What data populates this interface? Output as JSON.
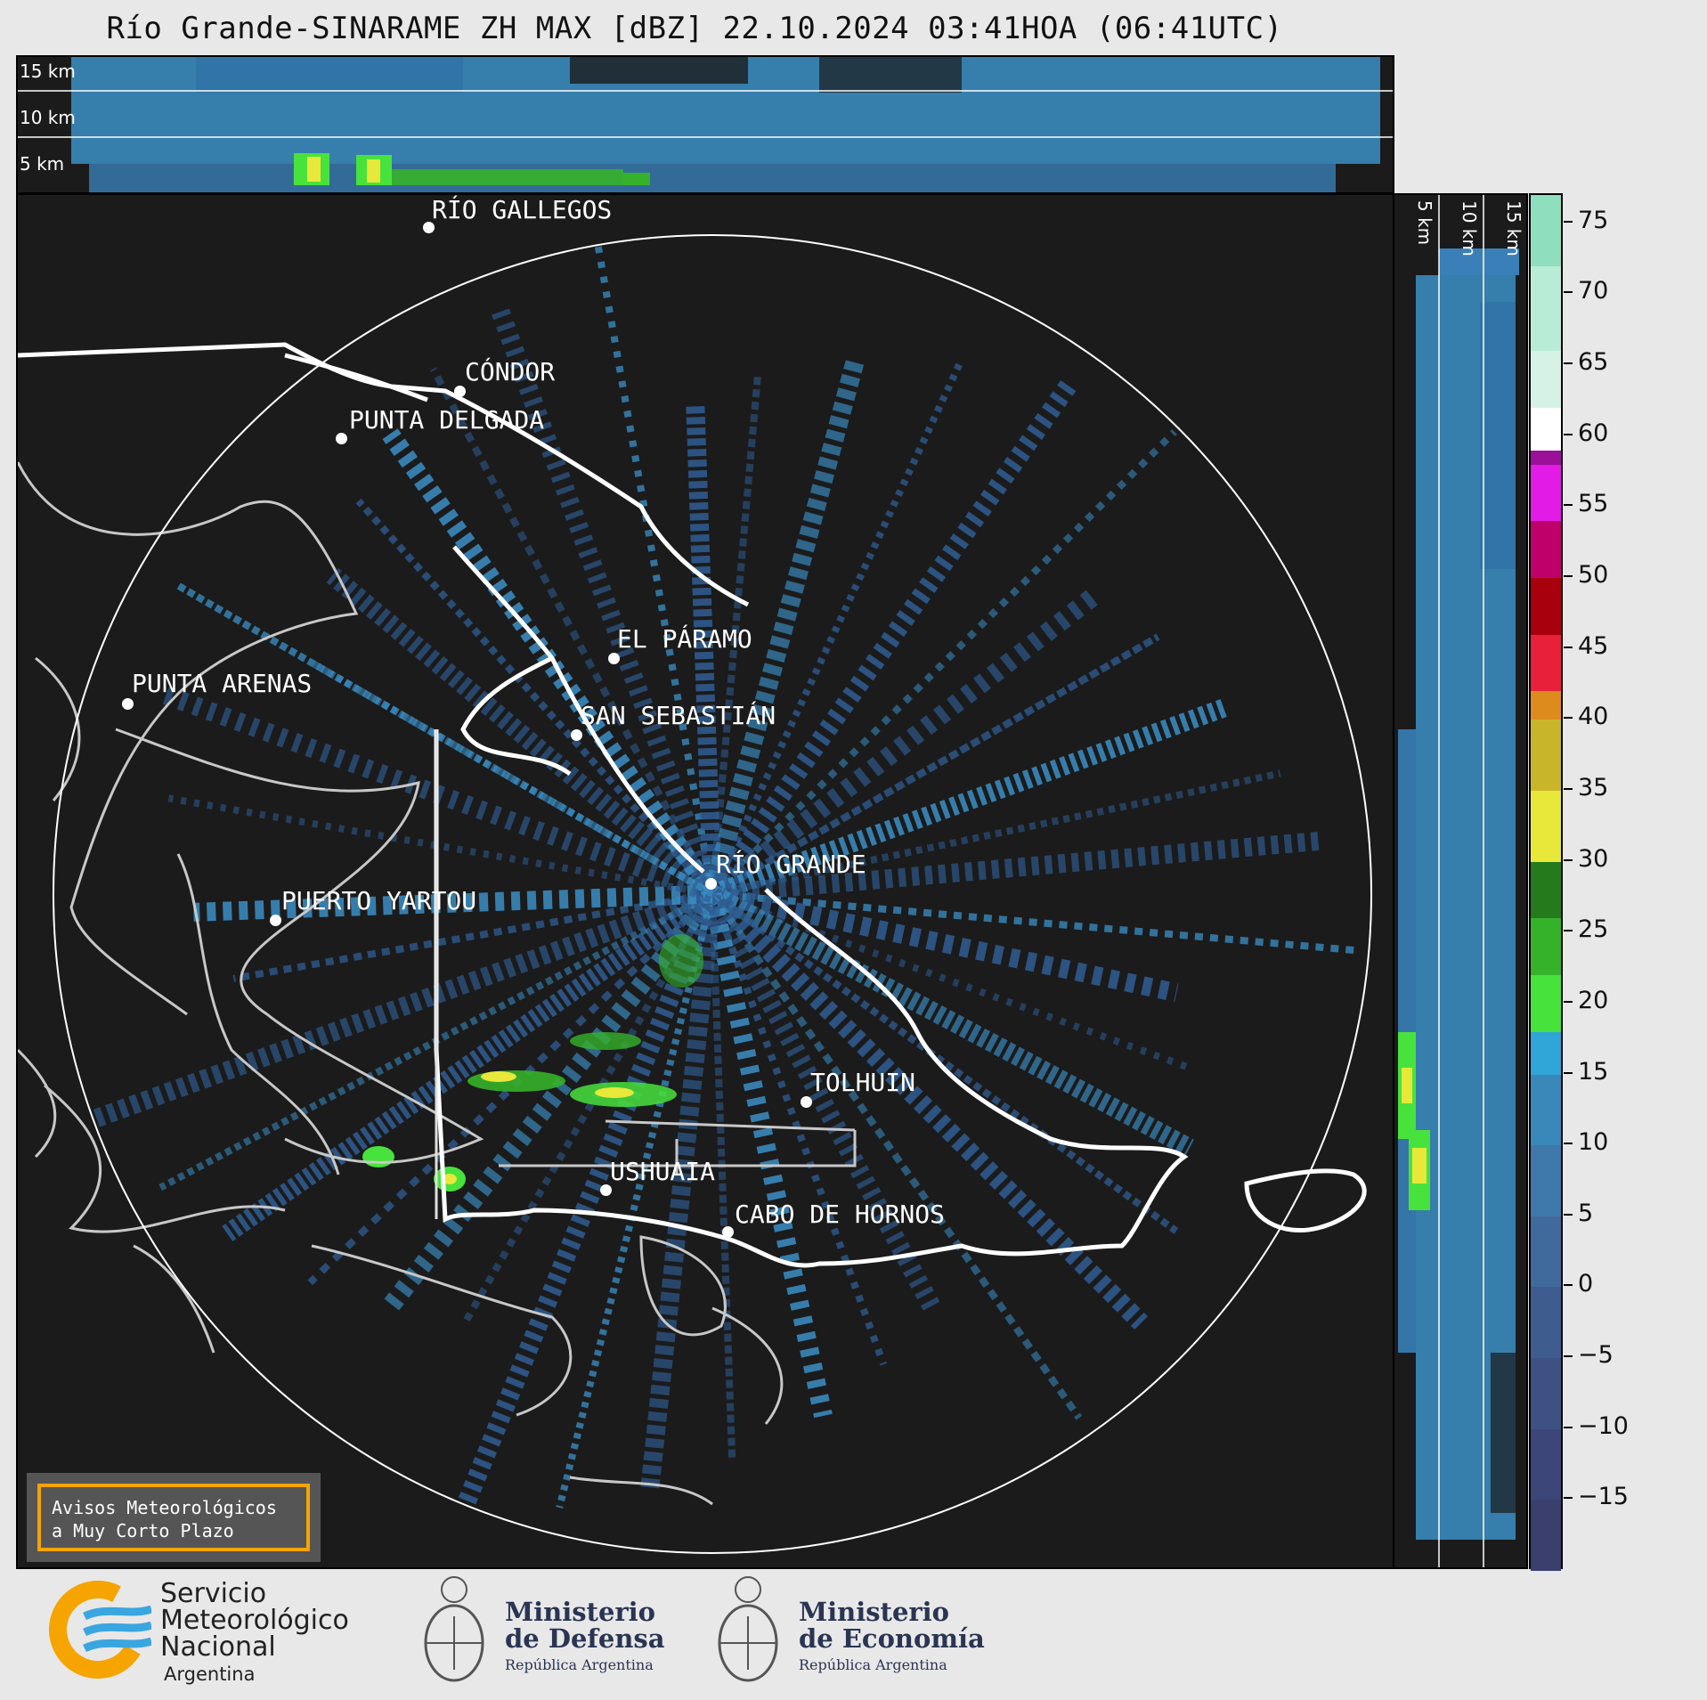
{
  "header": {
    "title": "Río Grande-SINARAME ZH MAX [dBZ] 22.10.2024 03:41HOA (06:41UTC)"
  },
  "top_section": {
    "altitude_labels": [
      "15 km",
      "10 km",
      "5 km"
    ]
  },
  "right_section": {
    "altitude_labels": [
      "5 km",
      "10 km",
      "15 km"
    ]
  },
  "map": {
    "cities": [
      {
        "name": "RÍO GALLEGOS"
      },
      {
        "name": "CÓNDOR"
      },
      {
        "name": "PUNTA DELGADA"
      },
      {
        "name": "EL PÁRAMO"
      },
      {
        "name": "PUNTA ARENAS"
      },
      {
        "name": "SAN SEBASTIÁN"
      },
      {
        "name": "RÍO GRANDE"
      },
      {
        "name": "PUERTO YARTOU"
      },
      {
        "name": "TOLHUIN"
      },
      {
        "name": "USHUAIA"
      },
      {
        "name": "CABO DE HORNOS"
      }
    ],
    "colors": {
      "background": "#1b1b1b",
      "echo_light": "#3b8fc6",
      "echo_dark": "#2f5d93",
      "coast": "#ffffff",
      "coast_secondary": "#c8c8c8"
    }
  },
  "warning": {
    "line1": "Avisos Meteorológicos",
    "line2": "a Muy Corto Plazo",
    "border_color": "#f5a400"
  },
  "colorbar": {
    "unit": "dBZ",
    "min": -20,
    "max": 77,
    "ticks": [
      75,
      70,
      65,
      60,
      55,
      50,
      45,
      40,
      35,
      30,
      25,
      20,
      15,
      10,
      5,
      0,
      -5,
      -10,
      -15
    ],
    "tick_labels": [
      "75",
      "70",
      "65",
      "60",
      "55",
      "50",
      "45",
      "40",
      "35",
      "30",
      "25",
      "20",
      "15",
      "10",
      "5",
      "0",
      "−5",
      "−10",
      "−15"
    ],
    "bands": [
      {
        "from": -20,
        "to": -15,
        "color": "#3a3f6d"
      },
      {
        "from": -15,
        "to": -10,
        "color": "#3c4678"
      },
      {
        "from": -10,
        "to": -5,
        "color": "#3e5183"
      },
      {
        "from": -5,
        "to": 0,
        "color": "#3f5c8f"
      },
      {
        "from": 0,
        "to": 5,
        "color": "#40699c"
      },
      {
        "from": 5,
        "to": 10,
        "color": "#3f78ab"
      },
      {
        "from": 10,
        "to": 15,
        "color": "#3a88ba"
      },
      {
        "from": 15,
        "to": 18,
        "color": "#2fa5d8"
      },
      {
        "from": 18,
        "to": 22,
        "color": "#48e23c"
      },
      {
        "from": 22,
        "to": 26,
        "color": "#36b22a"
      },
      {
        "from": 26,
        "to": 30,
        "color": "#257b1c"
      },
      {
        "from": 30,
        "to": 35,
        "color": "#e8e83a"
      },
      {
        "from": 35,
        "to": 40,
        "color": "#c9b52a"
      },
      {
        "from": 40,
        "to": 42,
        "color": "#de8b1e"
      },
      {
        "from": 42,
        "to": 46,
        "color": "#e8203a"
      },
      {
        "from": 46,
        "to": 50,
        "color": "#a8000c"
      },
      {
        "from": 50,
        "to": 54,
        "color": "#c0006a"
      },
      {
        "from": 54,
        "to": 58,
        "color": "#e21ce6"
      },
      {
        "from": 58,
        "to": 59,
        "color": "#9a1098"
      },
      {
        "from": 59,
        "to": 62,
        "color": "#ffffff"
      },
      {
        "from": 62,
        "to": 66,
        "color": "#d6f2e6"
      },
      {
        "from": 66,
        "to": 72,
        "color": "#b8ecd6"
      },
      {
        "from": 72,
        "to": 77,
        "color": "#8fdfbe"
      }
    ]
  },
  "footer": {
    "smn": {
      "line1": "Servicio",
      "line2": "Meteorológico",
      "line3": "Nacional",
      "line4": "Argentina"
    },
    "defensa": {
      "line1": "Ministerio",
      "line2": "de Defensa",
      "line3": "República Argentina"
    },
    "economia": {
      "line1": "Ministerio",
      "line2": "de Economía",
      "line3": "República Argentina"
    }
  }
}
